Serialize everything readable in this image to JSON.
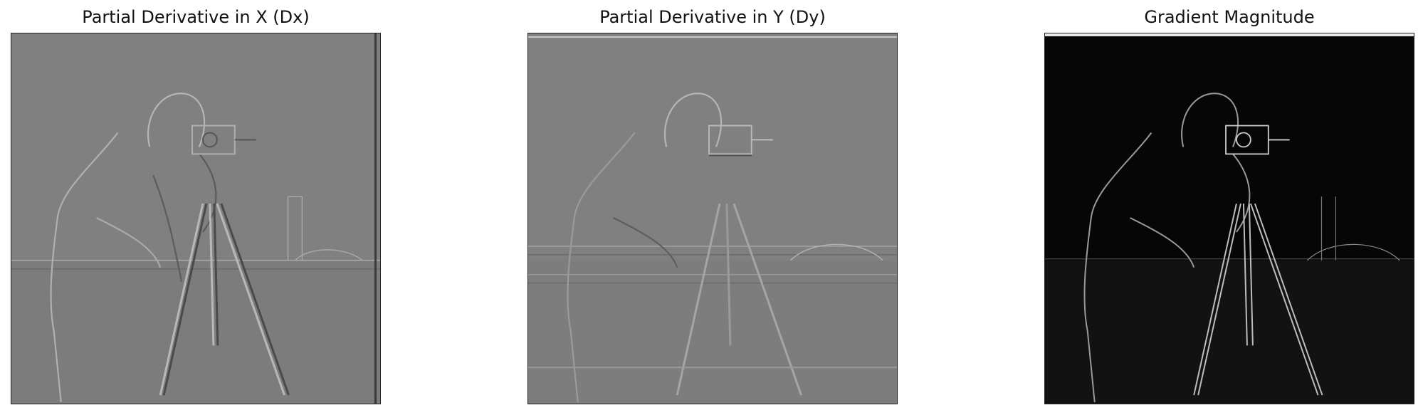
{
  "figure": {
    "panels": [
      {
        "title": "Partial Derivative in X (Dx)",
        "image_alt": "Horizontal derivative of the cameraman photograph",
        "background": "#808080"
      },
      {
        "title": "Partial Derivative in Y (Dy)",
        "image_alt": "Vertical derivative of the cameraman photograph",
        "background": "#808080"
      },
      {
        "title": "Gradient Magnitude",
        "image_alt": "Gradient magnitude edge map of the cameraman photograph",
        "background": "#060606"
      }
    ]
  }
}
